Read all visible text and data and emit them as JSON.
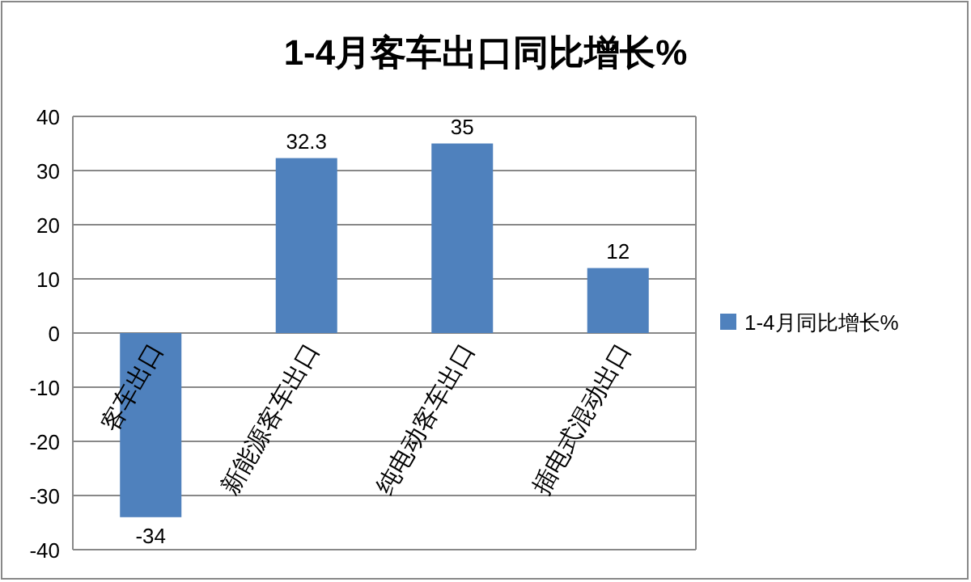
{
  "chart_data": {
    "type": "bar",
    "title": "1-4月客车出口同比增长%",
    "categories": [
      "客车出口",
      "新能源客车出口",
      "纯电动客车出口",
      "插电式混动出口"
    ],
    "series": [
      {
        "name": "1-4月同比增长%",
        "color": "#4f81bd",
        "values": [
          -34,
          32.3,
          35,
          12
        ]
      }
    ],
    "ylim": [
      -40,
      40
    ],
    "yticks": [
      -40,
      -30,
      -20,
      -10,
      0,
      10,
      20,
      30,
      40
    ],
    "grid": "y",
    "legend": "right",
    "data_labels": true
  }
}
